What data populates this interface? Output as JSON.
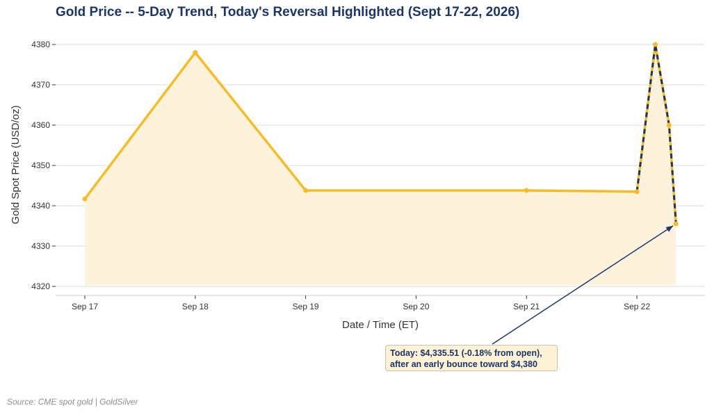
{
  "chart_data": {
    "type": "line",
    "title": "Gold Price -- 5-Day Trend, Today's Reversal Highlighted (Sept 17-22, 2026)",
    "xlabel": "Date / Time (ET)",
    "ylabel": "Gold Spot Price (USD/oz)",
    "ylim": [
      4318,
      4384
    ],
    "yticks": [
      4320,
      4330,
      4340,
      4350,
      4360,
      4370,
      4380
    ],
    "xticks": [
      "Sep 17",
      "Sep 18",
      "Sep 19",
      "Sep 20",
      "Sep 21",
      "Sep 22"
    ],
    "grid": "horizontal",
    "series": [
      {
        "points": [
          {
            "x": "Sep 17 00:00",
            "y": 4341.7
          },
          {
            "x": "Sep 18 00:00",
            "y": 4378.0
          },
          {
            "x": "Sep 19 00:00",
            "y": 4343.8
          },
          {
            "x": "Sep 21 00:00",
            "y": 4343.8
          },
          {
            "x": "Sep 22 00:00",
            "y": 4343.5
          },
          {
            "x": "Sep 22 04:00",
            "y": 4380.0
          },
          {
            "x": "Sep 22 07:00",
            "y": 4360.0
          },
          {
            "x": "Sep 22 08:30",
            "y": 4335.51
          }
        ],
        "color": "#f8bb21"
      },
      {
        "points": [
          {
            "x": "Sep 22 00:00",
            "y": 4343.5
          },
          {
            "x": "Sep 22 04:00",
            "y": 4380.0
          },
          {
            "x": "Sep 22 07:00",
            "y": 4360.0
          },
          {
            "x": "Sep 22 08:30",
            "y": 4335.51
          }
        ],
        "color": "#1a3668",
        "style": "dashed"
      }
    ],
    "annotation": {
      "line1": "Today: $4,335.51 (-0.18% from open),",
      "line2": "after an early bounce toward $4,380",
      "target": {
        "x": "Sep 22 08:30",
        "y": 4335.51
      }
    }
  },
  "footer": {
    "source": "Source: CME spot gold | GoldSilver"
  },
  "colors": {
    "line": "#f8bb21",
    "fill": "#fdf3dc",
    "highlight": "#1a3668",
    "title": "#1a3668"
  }
}
